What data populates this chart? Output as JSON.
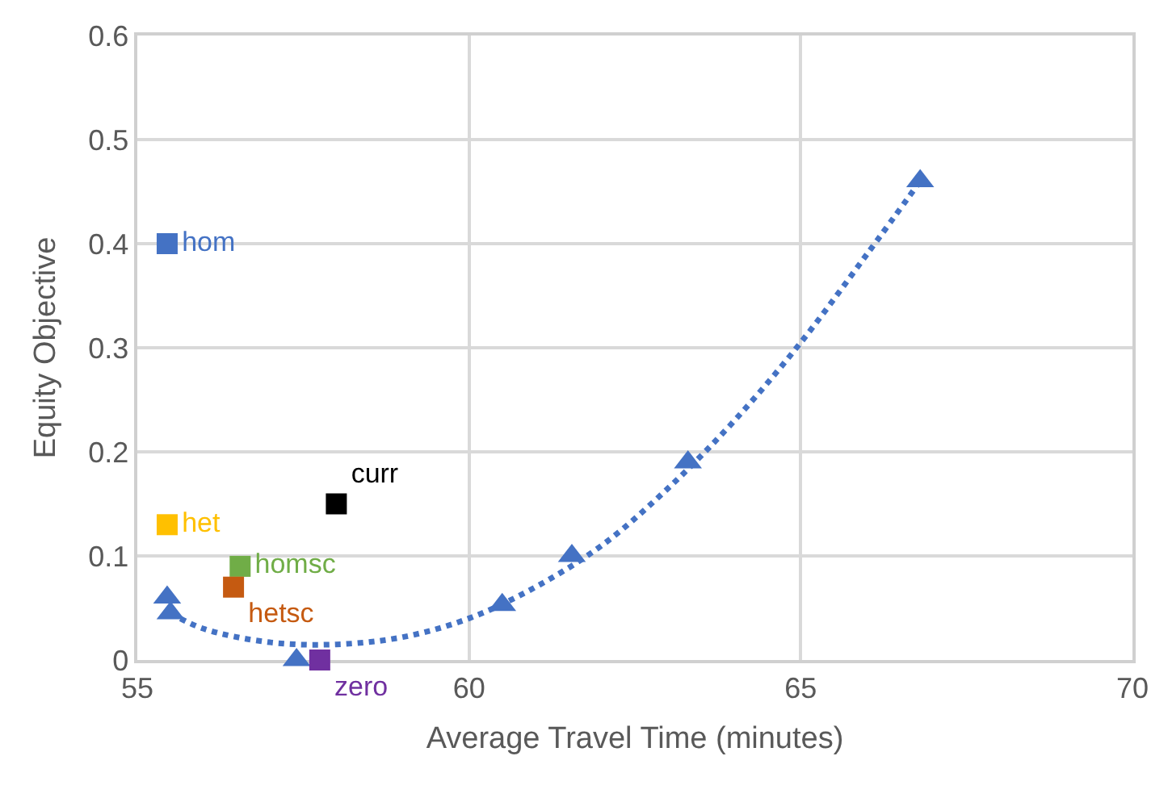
{
  "chart_data": {
    "type": "scatter",
    "xlabel": "Average Travel Time (minutes)",
    "ylabel": "Equity Objective",
    "xlim": [
      55,
      70
    ],
    "xticks": [
      55,
      60,
      65,
      70
    ],
    "ylim": [
      0,
      0.6
    ],
    "yticks": [
      0,
      0.1,
      0.2,
      0.3,
      0.4,
      0.5,
      0.6
    ],
    "grid": true,
    "legend": false,
    "series": [
      {
        "type": "line",
        "line_style": "dotted",
        "marker": "none",
        "color": "#4472c4",
        "x": [
          55.5,
          56,
          57,
          58,
          59,
          60,
          61,
          62,
          63,
          64,
          65,
          66,
          66.8
        ],
        "values": [
          0.045,
          0.03,
          0.017,
          0.015,
          0.022,
          0.04,
          0.07,
          0.11,
          0.165,
          0.23,
          0.305,
          0.39,
          0.46
        ]
      },
      {
        "marker": "triangle",
        "color": "#4472c4",
        "x": [
          55.45,
          55.5,
          57.4,
          60.5,
          61.55,
          63.3,
          66.8
        ],
        "values": [
          0.06,
          0.045,
          0.0,
          0.053,
          0.1,
          0.19,
          0.46
        ]
      },
      {
        "marker": "square",
        "name": "hom",
        "color": "#4472c4",
        "x": [
          55.45
        ],
        "values": [
          0.4
        ]
      },
      {
        "marker": "square",
        "name": "het",
        "color": "#ffc000",
        "x": [
          55.45
        ],
        "values": [
          0.13
        ]
      },
      {
        "marker": "square",
        "name": "homsc",
        "color": "#70ad47",
        "x": [
          56.55
        ],
        "values": [
          0.09
        ]
      },
      {
        "marker": "square",
        "name": "hetsc",
        "color": "#c55a11",
        "x": [
          56.45
        ],
        "values": [
          0.07
        ]
      },
      {
        "marker": "square",
        "name": "curr",
        "color": "#000000",
        "x": [
          58.0
        ],
        "values": [
          0.15
        ]
      },
      {
        "marker": "square",
        "name": "zero",
        "color": "#7030a0",
        "x": [
          57.75
        ],
        "values": [
          0.0
        ]
      }
    ]
  }
}
